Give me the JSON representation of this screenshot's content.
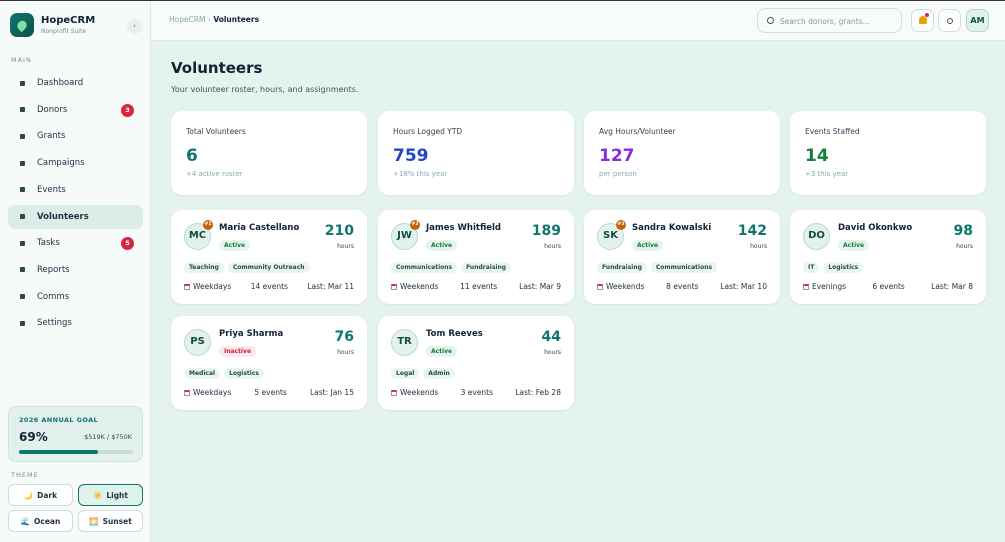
{
  "brand": {
    "name": "HopeCRM",
    "tagline": "Nonprofit Suite"
  },
  "nav": {
    "section": "MAIN",
    "active": 5,
    "items": [
      {
        "label": "Dashboard"
      },
      {
        "label": "Donors",
        "badge": 3
      },
      {
        "label": "Grants"
      },
      {
        "label": "Campaigns"
      },
      {
        "label": "Events"
      },
      {
        "label": "Volunteers"
      },
      {
        "label": "Tasks",
        "badge": 5
      },
      {
        "label": "Reports"
      },
      {
        "label": "Comms"
      },
      {
        "label": "Settings"
      }
    ]
  },
  "goal": {
    "title": "2026 ANNUAL GOAL",
    "progress": {
      "value": 69,
      "label": "69%"
    },
    "amount": "$519K / $750K"
  },
  "theme": {
    "title": "THEME",
    "active": 1,
    "options": [
      {
        "icon": "🌙",
        "label": "Dark"
      },
      {
        "icon": "☀️",
        "label": "Light"
      },
      {
        "icon": "🌊",
        "label": "Ocean"
      },
      {
        "icon": "🌅",
        "label": "Sunset"
      }
    ]
  },
  "topbar": {
    "breadcrumb": [
      "HopeCRM",
      "Volunteers"
    ],
    "search_placeholder": "Search donors, grants...",
    "avatar": "AM"
  },
  "page": {
    "title": "Volunteers",
    "subtitle": "Your volunteer roster, hours, and assignments."
  },
  "stats": [
    {
      "label": "Total Volunteers",
      "value": 6,
      "note": "+4 active roster",
      "color": "#0f766e"
    },
    {
      "label": "Hours Logged YTD",
      "value": 759,
      "note": "+18% this year",
      "color": "#2346c8"
    },
    {
      "label": "Avg Hours/Volunteer",
      "value": 127,
      "note": "per person",
      "color": "#8a2be2"
    },
    {
      "label": "Events Staffed",
      "value": 14,
      "note": "+3 this year",
      "color": "#15803d"
    }
  ],
  "volunteers": {
    "hours_unit": "hours",
    "people": [
      {
        "initials": "MC",
        "rank": "#1",
        "name": "Maria Castellano",
        "status": "Active",
        "hours": 210,
        "tags": [
          "Teaching",
          "Community Outreach"
        ],
        "availability": "Weekdays",
        "events": "14 events",
        "last": "Last: Mar 11"
      },
      {
        "initials": "JW",
        "rank": "#2",
        "name": "James Whitfield",
        "status": "Active",
        "hours": 189,
        "tags": [
          "Communications",
          "Fundraising"
        ],
        "availability": "Weekends",
        "events": "11 events",
        "last": "Last: Mar 9"
      },
      {
        "initials": "SK",
        "rank": "#3",
        "name": "Sandra Kowalski",
        "status": "Active",
        "hours": 142,
        "tags": [
          "Fundraising",
          "Communications"
        ],
        "availability": "Weekends",
        "events": "8 events",
        "last": "Last: Mar 10"
      },
      {
        "initials": "DO",
        "name": "David Okonkwo",
        "status": "Active",
        "hours": 98,
        "tags": [
          "IT",
          "Logistics"
        ],
        "availability": "Evenings",
        "events": "6 events",
        "last": "Last: Mar 8"
      },
      {
        "initials": "PS",
        "name": "Priya Sharma",
        "status": "Inactive",
        "hours": 76,
        "tags": [
          "Medical",
          "Logistics"
        ],
        "availability": "Weekdays",
        "events": "5 events",
        "last": "Last: Jan 15"
      },
      {
        "initials": "TR",
        "name": "Tom Reeves",
        "status": "Active",
        "hours": 44,
        "tags": [
          "Legal",
          "Admin"
        ],
        "availability": "Weekends",
        "events": "3 events",
        "last": "Last: Feb 28"
      }
    ]
  }
}
